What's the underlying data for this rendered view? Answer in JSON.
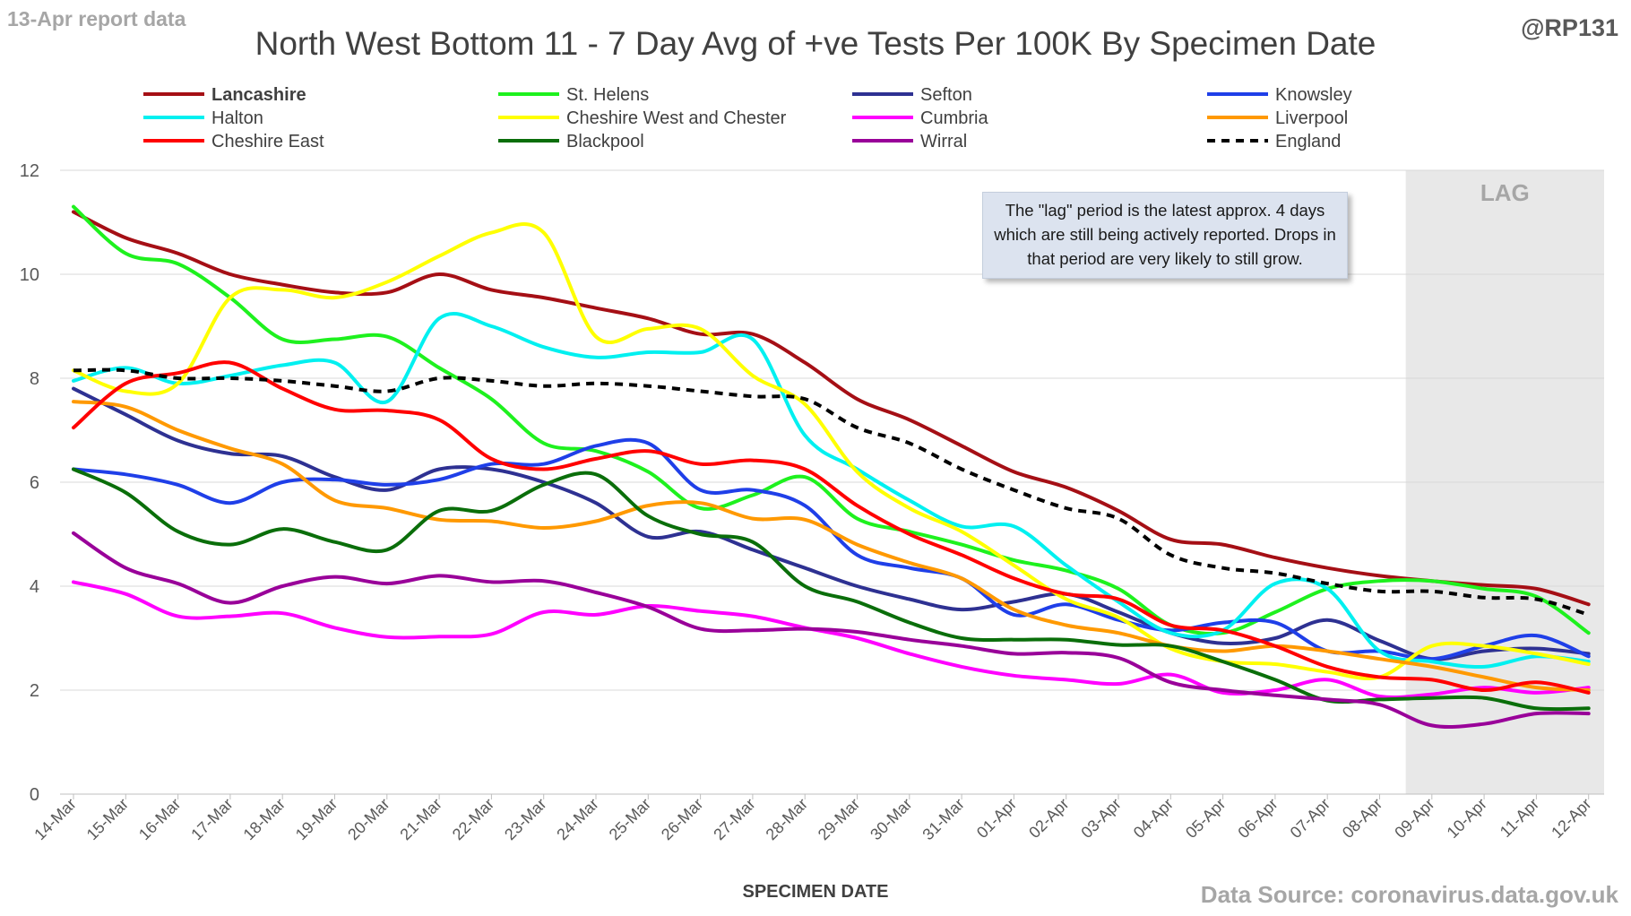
{
  "header": {
    "report_label": "13-Apr report data",
    "handle": "@RP131",
    "title": "North West Bottom 11 - 7 Day Avg of +ve Tests Per 100K By Specimen Date",
    "source": "Data Source: coronavirus.data.gov.uk"
  },
  "annotation": {
    "lag_label": "LAG",
    "note": "The \"lag\" period is the latest approx. 4 days which are still being actively reported.  Drops in that period are very likely to still grow."
  },
  "chart_data": {
    "type": "line",
    "title": "North West Bottom 11 - 7 Day Avg of +ve Tests Per 100K By Specimen Date",
    "xlabel": "SPECIMEN DATE",
    "ylabel": "",
    "ylim": [
      0,
      12
    ],
    "yticks": [
      0,
      2,
      4,
      6,
      8,
      10,
      12
    ],
    "grid": true,
    "legend": "top",
    "lag_start": "08-Apr",
    "categories": [
      "14-Mar",
      "15-Mar",
      "16-Mar",
      "17-Mar",
      "18-Mar",
      "19-Mar",
      "20-Mar",
      "21-Mar",
      "22-Mar",
      "23-Mar",
      "24-Mar",
      "25-Mar",
      "26-Mar",
      "27-Mar",
      "28-Mar",
      "29-Mar",
      "30-Mar",
      "31-Mar",
      "01-Apr",
      "02-Apr",
      "03-Apr",
      "04-Apr",
      "05-Apr",
      "06-Apr",
      "07-Apr",
      "08-Apr",
      "09-Apr",
      "10-Apr",
      "11-Apr",
      "12-Apr"
    ],
    "series": [
      {
        "name": "Lancashire",
        "color": "#a50f15",
        "dashed": false,
        "bold": true,
        "values": [
          11.2,
          10.7,
          10.4,
          10.0,
          9.8,
          9.65,
          9.65,
          10.0,
          9.7,
          9.55,
          9.35,
          9.15,
          8.85,
          8.85,
          8.3,
          7.6,
          7.2,
          6.7,
          6.2,
          5.9,
          5.45,
          4.9,
          4.8,
          4.55,
          4.35,
          4.2,
          4.1,
          4.02,
          3.95,
          3.65
        ]
      },
      {
        "name": "St. Helens",
        "color": "#1ef11e",
        "dashed": false,
        "bold": false,
        "values": [
          11.3,
          10.4,
          10.2,
          9.55,
          8.75,
          8.75,
          8.8,
          8.2,
          7.6,
          6.75,
          6.6,
          6.2,
          5.5,
          5.75,
          6.1,
          5.3,
          5.05,
          4.8,
          4.5,
          4.3,
          3.95,
          3.25,
          3.1,
          3.5,
          3.95,
          4.1,
          4.1,
          3.95,
          3.8,
          3.1
        ]
      },
      {
        "name": "Sefton",
        "color": "#2e3192",
        "dashed": false,
        "bold": false,
        "values": [
          7.8,
          7.3,
          6.8,
          6.55,
          6.5,
          6.1,
          5.85,
          6.25,
          6.25,
          6.0,
          5.6,
          4.95,
          5.05,
          4.7,
          4.35,
          4.0,
          3.75,
          3.55,
          3.7,
          3.85,
          3.5,
          3.1,
          2.9,
          3.0,
          3.35,
          2.95,
          2.6,
          2.75,
          2.8,
          2.7
        ]
      },
      {
        "name": "Knowsley",
        "color": "#1f3fe8",
        "dashed": false,
        "bold": false,
        "values": [
          6.25,
          6.15,
          5.95,
          5.6,
          6.0,
          6.05,
          5.95,
          6.05,
          6.35,
          6.35,
          6.7,
          6.75,
          5.85,
          5.85,
          5.55,
          4.6,
          4.35,
          4.15,
          3.45,
          3.65,
          3.35,
          3.15,
          3.3,
          3.3,
          2.75,
          2.75,
          2.6,
          2.85,
          3.05,
          2.65
        ]
      },
      {
        "name": "Halton",
        "color": "#00f0f0",
        "dashed": false,
        "bold": false,
        "values": [
          7.95,
          8.2,
          7.9,
          8.05,
          8.25,
          8.3,
          7.55,
          9.15,
          9.0,
          8.6,
          8.4,
          8.5,
          8.5,
          8.75,
          6.9,
          6.25,
          5.65,
          5.15,
          5.15,
          4.4,
          3.7,
          3.1,
          3.15,
          4.05,
          3.95,
          2.75,
          2.55,
          2.45,
          2.65,
          2.55
        ]
      },
      {
        "name": "Cheshire West and Chester",
        "color": "#ffff00",
        "dashed": false,
        "bold": false,
        "values": [
          8.15,
          7.75,
          7.9,
          9.55,
          9.7,
          9.55,
          9.85,
          10.35,
          10.8,
          10.8,
          8.8,
          8.95,
          8.95,
          8.05,
          7.5,
          6.2,
          5.5,
          5.05,
          4.4,
          3.75,
          3.4,
          2.8,
          2.55,
          2.5,
          2.35,
          2.25,
          2.85,
          2.85,
          2.7,
          2.5
        ]
      },
      {
        "name": "Cumbria",
        "color": "#ff00ff",
        "dashed": false,
        "bold": false,
        "values": [
          4.08,
          3.85,
          3.42,
          3.42,
          3.48,
          3.2,
          3.02,
          3.03,
          3.08,
          3.5,
          3.45,
          3.62,
          3.52,
          3.42,
          3.2,
          3.0,
          2.7,
          2.45,
          2.28,
          2.2,
          2.12,
          2.3,
          1.95,
          2.0,
          2.2,
          1.88,
          1.92,
          2.05,
          1.95,
          2.05
        ]
      },
      {
        "name": "Liverpool",
        "color": "#ff9900",
        "dashed": false,
        "bold": false,
        "values": [
          7.55,
          7.45,
          7.0,
          6.65,
          6.35,
          5.65,
          5.5,
          5.28,
          5.25,
          5.12,
          5.25,
          5.55,
          5.6,
          5.3,
          5.28,
          4.8,
          4.45,
          4.15,
          3.55,
          3.25,
          3.1,
          2.85,
          2.75,
          2.85,
          2.75,
          2.6,
          2.45,
          2.25,
          2.05,
          2.0
        ]
      },
      {
        "name": "Cheshire East",
        "color": "#ff0000",
        "dashed": false,
        "bold": false,
        "values": [
          7.05,
          7.9,
          8.1,
          8.3,
          7.8,
          7.4,
          7.38,
          7.2,
          6.45,
          6.25,
          6.45,
          6.6,
          6.35,
          6.42,
          6.25,
          5.55,
          5.0,
          4.6,
          4.15,
          3.85,
          3.75,
          3.25,
          3.15,
          2.85,
          2.45,
          2.25,
          2.2,
          2.0,
          2.15,
          1.95
        ]
      },
      {
        "name": "Blackpool",
        "color": "#0a6e0a",
        "dashed": false,
        "bold": false,
        "values": [
          6.25,
          5.8,
          5.05,
          4.8,
          5.1,
          4.85,
          4.7,
          5.45,
          5.45,
          5.95,
          6.15,
          5.35,
          5.0,
          4.85,
          4.0,
          3.7,
          3.3,
          3.0,
          2.97,
          2.97,
          2.87,
          2.85,
          2.55,
          2.2,
          1.8,
          1.82,
          1.85,
          1.85,
          1.65,
          1.65
        ]
      },
      {
        "name": "Wirral",
        "color": "#990099",
        "dashed": false,
        "bold": false,
        "values": [
          5.02,
          4.35,
          4.05,
          3.68,
          4.0,
          4.18,
          4.05,
          4.2,
          4.08,
          4.1,
          3.88,
          3.6,
          3.18,
          3.15,
          3.18,
          3.12,
          2.97,
          2.85,
          2.7,
          2.72,
          2.62,
          2.15,
          2.0,
          1.9,
          1.82,
          1.72,
          1.32,
          1.35,
          1.55,
          1.55
        ]
      },
      {
        "name": "England",
        "color": "#000000",
        "dashed": true,
        "bold": false,
        "values": [
          8.15,
          8.15,
          8.0,
          8.0,
          7.95,
          7.85,
          7.75,
          8.0,
          7.95,
          7.85,
          7.9,
          7.85,
          7.75,
          7.65,
          7.6,
          7.05,
          6.75,
          6.25,
          5.85,
          5.5,
          5.3,
          4.6,
          4.35,
          4.25,
          4.05,
          3.9,
          3.9,
          3.78,
          3.75,
          3.45
        ]
      }
    ]
  }
}
